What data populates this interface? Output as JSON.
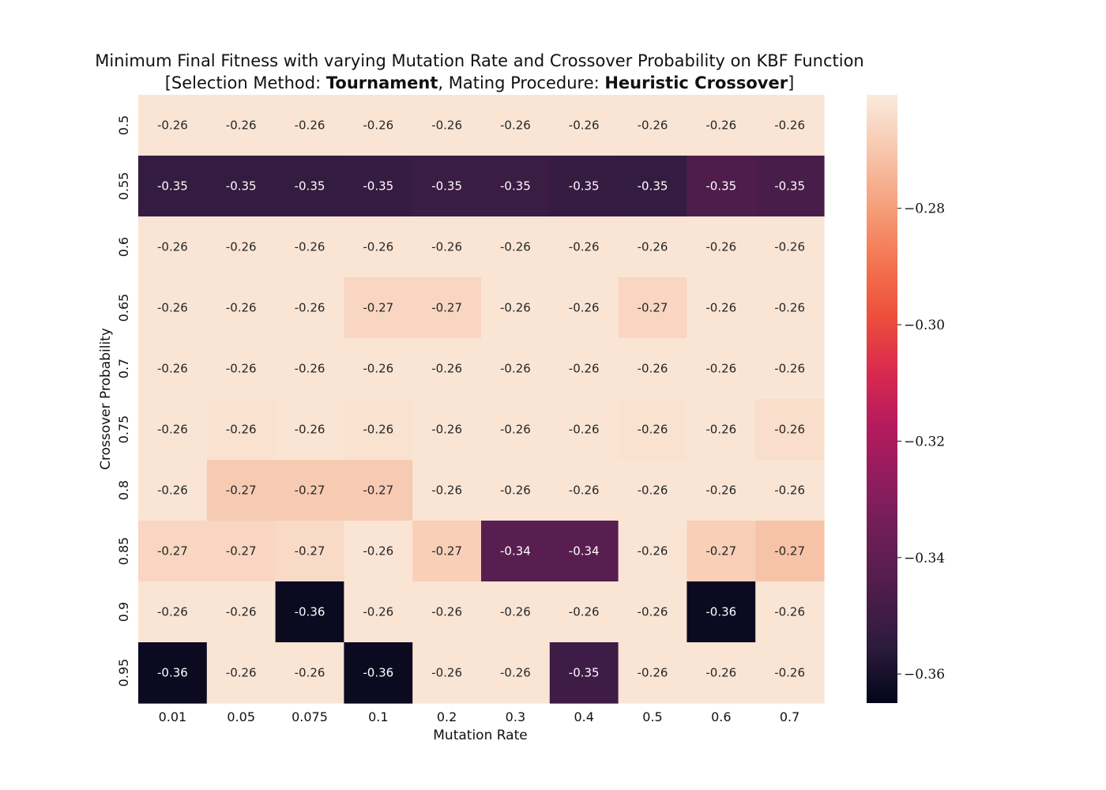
{
  "chart_data": {
    "type": "heatmap",
    "title_line1": "Minimum Final Fitness with varying Mutation Rate and Crossover Probability on KBF Function",
    "title_line2": {
      "open": "[Selection Method: ",
      "selection": "Tournament",
      "mid": ", Mating Procedure: ",
      "mating": "Heuristic Crossover",
      "close": "]"
    },
    "xlabel": "Mutation Rate",
    "ylabel": "Crossover Probability",
    "x_categories": [
      "0.01",
      "0.05",
      "0.075",
      "0.1",
      "0.2",
      "0.3",
      "0.4",
      "0.5",
      "0.6",
      "0.7"
    ],
    "y_categories": [
      "0.5",
      "0.55",
      "0.6",
      "0.65",
      "0.7",
      "0.75",
      "0.8",
      "0.85",
      "0.9",
      "0.95"
    ],
    "values": [
      [
        -0.262,
        -0.262,
        -0.262,
        -0.262,
        -0.262,
        -0.262,
        -0.262,
        -0.262,
        -0.262,
        -0.262
      ],
      [
        -0.353,
        -0.353,
        -0.353,
        -0.352,
        -0.351,
        -0.351,
        -0.352,
        -0.353,
        -0.345,
        -0.347
      ],
      [
        -0.262,
        -0.262,
        -0.262,
        -0.262,
        -0.262,
        -0.262,
        -0.262,
        -0.262,
        -0.262,
        -0.262
      ],
      [
        -0.262,
        -0.262,
        -0.262,
        -0.266,
        -0.266,
        -0.262,
        -0.262,
        -0.266,
        -0.262,
        -0.262
      ],
      [
        -0.262,
        -0.262,
        -0.262,
        -0.262,
        -0.262,
        -0.262,
        -0.262,
        -0.262,
        -0.262,
        -0.262
      ],
      [
        -0.262,
        -0.263,
        -0.262,
        -0.263,
        -0.262,
        -0.262,
        -0.262,
        -0.263,
        -0.262,
        -0.264
      ],
      [
        -0.262,
        -0.269,
        -0.269,
        -0.269,
        -0.262,
        -0.262,
        -0.262,
        -0.262,
        -0.262,
        -0.262
      ],
      [
        -0.266,
        -0.266,
        -0.265,
        -0.262,
        -0.268,
        -0.342,
        -0.342,
        -0.262,
        -0.268,
        -0.271
      ],
      [
        -0.262,
        -0.262,
        -0.363,
        -0.262,
        -0.262,
        -0.262,
        -0.262,
        -0.262,
        -0.363,
        -0.262
      ],
      [
        -0.363,
        -0.262,
        -0.262,
        -0.363,
        -0.262,
        -0.262,
        -0.35,
        -0.262,
        -0.262,
        -0.262
      ]
    ],
    "cell_labels": [
      [
        "-0.26",
        "-0.26",
        "-0.26",
        "-0.26",
        "-0.26",
        "-0.26",
        "-0.26",
        "-0.26",
        "-0.26",
        "-0.26"
      ],
      [
        "-0.35",
        "-0.35",
        "-0.35",
        "-0.35",
        "-0.35",
        "-0.35",
        "-0.35",
        "-0.35",
        "-0.35",
        "-0.35"
      ],
      [
        "-0.26",
        "-0.26",
        "-0.26",
        "-0.26",
        "-0.26",
        "-0.26",
        "-0.26",
        "-0.26",
        "-0.26",
        "-0.26"
      ],
      [
        "-0.26",
        "-0.26",
        "-0.26",
        "-0.27",
        "-0.27",
        "-0.26",
        "-0.26",
        "-0.27",
        "-0.26",
        "-0.26"
      ],
      [
        "-0.26",
        "-0.26",
        "-0.26",
        "-0.26",
        "-0.26",
        "-0.26",
        "-0.26",
        "-0.26",
        "-0.26",
        "-0.26"
      ],
      [
        "-0.26",
        "-0.26",
        "-0.26",
        "-0.26",
        "-0.26",
        "-0.26",
        "-0.26",
        "-0.26",
        "-0.26",
        "-0.26"
      ],
      [
        "-0.26",
        "-0.27",
        "-0.27",
        "-0.27",
        "-0.26",
        "-0.26",
        "-0.26",
        "-0.26",
        "-0.26",
        "-0.26"
      ],
      [
        "-0.27",
        "-0.27",
        "-0.27",
        "-0.26",
        "-0.27",
        "-0.34",
        "-0.34",
        "-0.26",
        "-0.27",
        "-0.27"
      ],
      [
        "-0.26",
        "-0.26",
        "-0.36",
        "-0.26",
        "-0.26",
        "-0.26",
        "-0.26",
        "-0.26",
        "-0.36",
        "-0.26"
      ],
      [
        "-0.36",
        "-0.26",
        "-0.26",
        "-0.36",
        "-0.26",
        "-0.26",
        "-0.35",
        "-0.26",
        "-0.26",
        "-0.26"
      ]
    ],
    "colorbar": {
      "vmin": -0.365,
      "vmax": -0.2605,
      "ticks": [
        -0.28,
        -0.3,
        -0.32,
        -0.34,
        -0.36
      ],
      "tick_labels": [
        "−0.28",
        "−0.30",
        "−0.32",
        "−0.34",
        "−0.36"
      ],
      "colormap": "rocket",
      "colormap_stops": [
        "#03051a",
        "#2b1b3c",
        "#4c1d4b",
        "#6b1f56",
        "#8f1d5e",
        "#b41b5e",
        "#d92a4f",
        "#ee4f3b",
        "#f37651",
        "#f6a07c",
        "#f7c7ad",
        "#faebdd"
      ]
    },
    "grid": false
  }
}
